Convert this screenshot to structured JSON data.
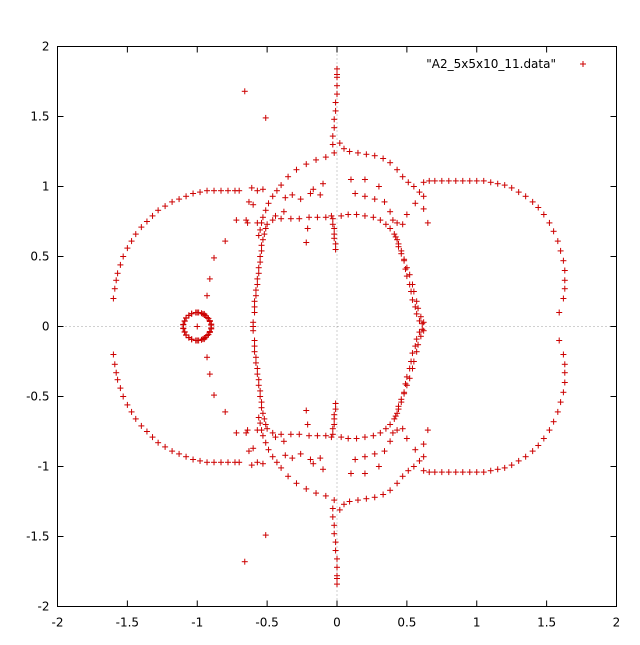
{
  "chart_data": {
    "type": "scatter",
    "title": "",
    "xlabel": "",
    "ylabel": "",
    "xlim": [
      -2,
      2
    ],
    "ylim": [
      -2,
      2
    ],
    "x_ticks": [
      "-2",
      "-1.5",
      "-1",
      "-0.5",
      "0",
      "0.5",
      "1",
      "1.5",
      "2"
    ],
    "y_ticks": [
      "2",
      "1.5",
      "1",
      "0.5",
      "0",
      "-0.5",
      "-1",
      "-1.5",
      "-2"
    ],
    "zero_axes": true,
    "grid": false,
    "legend_position": "top-right",
    "marker": "+",
    "color": "#cc0000",
    "series": [
      {
        "name": "\"A2_5x5x10_11.data\"",
        "symmetry": "mirrored about y = 0",
        "points_upper_half": [
          [
            -1.6,
            0.2
          ],
          [
            -1.59,
            0.27
          ],
          [
            -1.58,
            0.33
          ],
          [
            -1.57,
            0.38
          ],
          [
            -1.55,
            0.44
          ],
          [
            -1.53,
            0.5
          ],
          [
            -1.5,
            0.56
          ],
          [
            -1.47,
            0.61
          ],
          [
            -1.44,
            0.66
          ],
          [
            -1.4,
            0.71
          ],
          [
            -1.36,
            0.75
          ],
          [
            -1.32,
            0.79
          ],
          [
            -1.28,
            0.83
          ],
          [
            -1.23,
            0.86
          ],
          [
            -1.18,
            0.89
          ],
          [
            -1.13,
            0.91
          ],
          [
            -1.08,
            0.93
          ],
          [
            -1.03,
            0.95
          ],
          [
            -0.98,
            0.96
          ],
          [
            -0.93,
            0.97
          ],
          [
            -0.88,
            0.97
          ],
          [
            -0.83,
            0.97
          ],
          [
            -0.78,
            0.97
          ],
          [
            -0.73,
            0.97
          ],
          [
            -0.7,
            0.97
          ],
          [
            -0.66,
            1.68
          ],
          [
            -0.51,
            1.49
          ],
          [
            -0.65,
            0.76
          ],
          [
            -0.64,
            0.74
          ],
          [
            -0.57,
            0.74
          ],
          [
            -0.63,
            0.89
          ],
          [
            -0.57,
            0.97
          ],
          [
            -0.53,
            0.98
          ],
          [
            -0.61,
            0.99
          ],
          [
            -0.95,
            0.09
          ],
          [
            -0.93,
            0.22
          ],
          [
            -0.91,
            0.34
          ],
          [
            -0.88,
            0.49
          ],
          [
            -0.8,
            0.61
          ],
          [
            -0.72,
            0.76
          ],
          [
            -0.6,
            0.87
          ],
          [
            -0.6,
            0.0
          ],
          [
            -0.6,
            0.03
          ],
          [
            -0.59,
            0.1
          ],
          [
            -0.59,
            0.14
          ],
          [
            -0.59,
            0.18
          ],
          [
            -0.58,
            0.22
          ],
          [
            -0.58,
            0.26
          ],
          [
            -0.57,
            0.3
          ],
          [
            -0.57,
            0.34
          ],
          [
            -0.56,
            0.38
          ],
          [
            -0.56,
            0.42
          ],
          [
            -0.55,
            0.46
          ],
          [
            -0.55,
            0.5
          ],
          [
            -0.54,
            0.54
          ],
          [
            -0.54,
            0.58
          ],
          [
            -0.53,
            0.62
          ],
          [
            -0.52,
            0.66
          ],
          [
            -0.51,
            0.7
          ],
          [
            -0.5,
            0.73
          ],
          [
            -0.56,
            0.65
          ],
          [
            -0.55,
            0.69
          ],
          [
            -0.54,
            0.74
          ],
          [
            -0.53,
            0.78
          ],
          [
            -0.51,
            0.83
          ],
          [
            -0.49,
            0.88
          ],
          [
            -0.46,
            0.93
          ],
          [
            -0.43,
            0.97
          ],
          [
            -0.4,
            1.01
          ],
          [
            -0.35,
            1.07
          ],
          [
            -0.29,
            1.12
          ],
          [
            -0.22,
            1.16
          ],
          [
            -0.15,
            1.19
          ],
          [
            -0.08,
            1.21
          ],
          [
            -0.02,
            1.24
          ],
          [
            -0.46,
            0.76
          ],
          [
            -0.4,
            0.77
          ],
          [
            -0.33,
            0.77
          ],
          [
            -0.27,
            0.77
          ],
          [
            -0.2,
            0.78
          ],
          [
            -0.14,
            0.78
          ],
          [
            -0.08,
            0.78
          ],
          [
            -0.04,
            0.79
          ],
          [
            -0.22,
            0.6
          ],
          [
            -0.21,
            0.7
          ],
          [
            -0.19,
            0.95
          ],
          [
            -0.17,
            0.98
          ],
          [
            -0.12,
            0.94
          ],
          [
            -0.1,
            1.02
          ],
          [
            -0.26,
            0.91
          ],
          [
            -0.32,
            0.94
          ],
          [
            -0.37,
            0.92
          ],
          [
            -0.44,
            0.79
          ],
          [
            -0.38,
            0.82
          ],
          [
            -0.03,
            0.77
          ],
          [
            -0.03,
            0.73
          ],
          [
            -0.02,
            0.7
          ],
          [
            -0.02,
            0.66
          ],
          [
            -0.02,
            0.63
          ],
          [
            -0.01,
            0.59
          ],
          [
            -0.01,
            0.55
          ],
          [
            -0.03,
            1.3
          ],
          [
            -0.03,
            1.36
          ],
          [
            -0.02,
            1.42
          ],
          [
            -0.02,
            1.48
          ],
          [
            -0.01,
            1.54
          ],
          [
            -0.01,
            1.6
          ],
          [
            0.0,
            1.66
          ],
          [
            0.0,
            1.72
          ],
          [
            0.0,
            1.78
          ],
          [
            0.0,
            1.84
          ],
          [
            0.0,
            1.8
          ],
          [
            0.02,
            1.31
          ],
          [
            0.05,
            1.27
          ],
          [
            0.09,
            1.25
          ],
          [
            0.15,
            1.24
          ],
          [
            0.21,
            1.23
          ],
          [
            0.27,
            1.22
          ],
          [
            0.33,
            1.2
          ],
          [
            0.38,
            1.17
          ],
          [
            0.43,
            1.12
          ],
          [
            0.47,
            1.07
          ],
          [
            0.51,
            1.03
          ],
          [
            0.55,
            1.0
          ],
          [
            0.59,
            0.96
          ],
          [
            0.62,
            0.93
          ],
          [
            0.03,
            0.79
          ],
          [
            0.08,
            0.8
          ],
          [
            0.14,
            0.8
          ],
          [
            0.2,
            0.79
          ],
          [
            0.26,
            0.78
          ],
          [
            0.31,
            0.76
          ],
          [
            0.35,
            0.73
          ],
          [
            0.38,
            0.7
          ],
          [
            0.41,
            0.66
          ],
          [
            0.43,
            0.62
          ],
          [
            0.44,
            0.57
          ],
          [
            0.46,
            0.52
          ],
          [
            0.48,
            0.47
          ],
          [
            0.49,
            0.41
          ],
          [
            0.5,
            0.36
          ],
          [
            0.52,
            0.3
          ],
          [
            0.53,
            0.25
          ],
          [
            0.54,
            0.19
          ],
          [
            0.56,
            0.14
          ],
          [
            0.57,
            0.09
          ],
          [
            0.59,
            0.04
          ],
          [
            0.61,
            0.02
          ],
          [
            0.42,
            0.64
          ],
          [
            0.44,
            0.59
          ],
          [
            0.46,
            0.54
          ],
          [
            0.48,
            0.48
          ],
          [
            0.5,
            0.42
          ],
          [
            0.52,
            0.37
          ],
          [
            0.54,
            0.3
          ],
          [
            0.55,
            0.25
          ],
          [
            0.57,
            0.18
          ],
          [
            0.58,
            0.13
          ],
          [
            0.6,
            0.07
          ],
          [
            0.62,
            0.03
          ],
          [
            0.13,
            0.95
          ],
          [
            0.2,
            0.93
          ],
          [
            0.27,
            0.91
          ],
          [
            0.34,
            0.89
          ],
          [
            0.38,
            0.82
          ],
          [
            0.4,
            0.76
          ],
          [
            0.43,
            0.74
          ],
          [
            0.47,
            0.73
          ],
          [
            0.5,
            0.8
          ],
          [
            0.56,
            0.88
          ],
          [
            0.62,
            0.84
          ],
          [
            0.65,
            0.74
          ],
          [
            0.3,
            1.0
          ],
          [
            0.2,
            1.05
          ],
          [
            0.1,
            1.05
          ],
          [
            0.62,
            1.03
          ],
          [
            0.66,
            1.04
          ],
          [
            0.7,
            1.04
          ],
          [
            0.75,
            1.04
          ],
          [
            0.8,
            1.04
          ],
          [
            0.85,
            1.04
          ],
          [
            0.9,
            1.04
          ],
          [
            0.95,
            1.04
          ],
          [
            1.0,
            1.04
          ],
          [
            1.05,
            1.04
          ],
          [
            1.1,
            1.03
          ],
          [
            1.15,
            1.02
          ],
          [
            1.2,
            1.01
          ],
          [
            1.25,
            0.99
          ],
          [
            1.3,
            0.96
          ],
          [
            1.35,
            0.93
          ],
          [
            1.4,
            0.89
          ],
          [
            1.44,
            0.85
          ],
          [
            1.48,
            0.8
          ],
          [
            1.52,
            0.74
          ],
          [
            1.55,
            0.68
          ],
          [
            1.58,
            0.61
          ],
          [
            1.6,
            0.54
          ],
          [
            1.62,
            0.47
          ],
          [
            1.63,
            0.4
          ],
          [
            1.63,
            0.33
          ],
          [
            1.63,
            0.27
          ],
          [
            1.62,
            0.2
          ],
          [
            1.59,
            0.1
          ],
          [
            -1.0,
            0.1
          ],
          [
            -0.97,
            0.095
          ],
          [
            -0.95,
            0.083
          ],
          [
            -0.93,
            0.064
          ],
          [
            -0.91,
            0.042
          ],
          [
            -0.9,
            0.017
          ],
          [
            -0.9,
            -0.01
          ],
          [
            -0.91,
            -0.036
          ],
          [
            -0.92,
            -0.058
          ],
          [
            -0.94,
            -0.077
          ],
          [
            -0.96,
            -0.09
          ],
          [
            -0.99,
            -0.1
          ],
          [
            -1.01,
            -0.1
          ],
          [
            -1.04,
            -0.092
          ],
          [
            -1.06,
            -0.08
          ],
          [
            -1.08,
            -0.062
          ],
          [
            -1.09,
            -0.04
          ],
          [
            -1.1,
            -0.015
          ],
          [
            -1.1,
            0.012
          ],
          [
            -1.09,
            0.038
          ],
          [
            -1.08,
            0.06
          ],
          [
            -1.06,
            0.078
          ],
          [
            -1.04,
            0.091
          ],
          [
            -1.01,
            0.1
          ],
          [
            -1.0,
            0.0
          ]
        ]
      }
    ]
  }
}
